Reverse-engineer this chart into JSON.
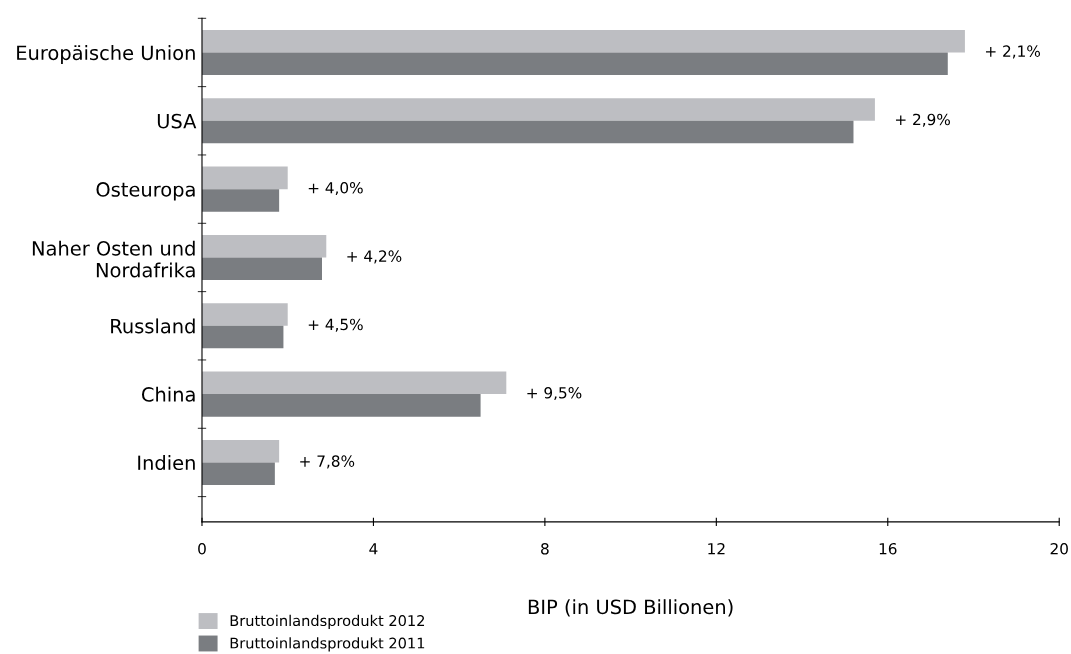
{
  "chart_data": {
    "type": "bar",
    "orientation": "horizontal",
    "xlabel": "BIP (in USD Billionen)",
    "categories": [
      "Europäische Union",
      "USA",
      "Osteuropa",
      "Naher Osten und\nNordafrika",
      "Russland",
      "China",
      "Indien"
    ],
    "series": [
      {
        "name": "Bruttoinlandsprodukt 2012",
        "color": "#bdbec2",
        "values": [
          17.8,
          15.7,
          2.0,
          2.9,
          2.0,
          7.1,
          1.8
        ]
      },
      {
        "name": "Bruttoinlandsprodukt 2011",
        "color": "#7a7d81",
        "values": [
          17.4,
          15.2,
          1.8,
          2.8,
          1.9,
          6.5,
          1.7
        ]
      }
    ],
    "xlim": [
      0,
      20
    ],
    "xticks": [
      0,
      4,
      8,
      12,
      16,
      20
    ],
    "grid": false,
    "legend": "bottom left",
    "annotations": [
      {
        "text": "+ 2,1%",
        "x": 17.8,
        "y": "Europäische Union"
      },
      {
        "text": "+ 2,9%",
        "x": 15.7,
        "y": "USA"
      },
      {
        "text": "+ 4,0%",
        "x": 2.0,
        "y": "Osteuropa"
      },
      {
        "text": "+ 4,2%",
        "x": 2.9,
        "y": "Naher Osten und\nNordafrika"
      },
      {
        "text": "+ 4,5%",
        "x": 2.0,
        "y": "Russland"
      },
      {
        "text": "+ 9,5%",
        "x": 7.1,
        "y": "China"
      },
      {
        "text": "+ 7,8%",
        "x": 1.8,
        "y": "Indien"
      }
    ]
  }
}
